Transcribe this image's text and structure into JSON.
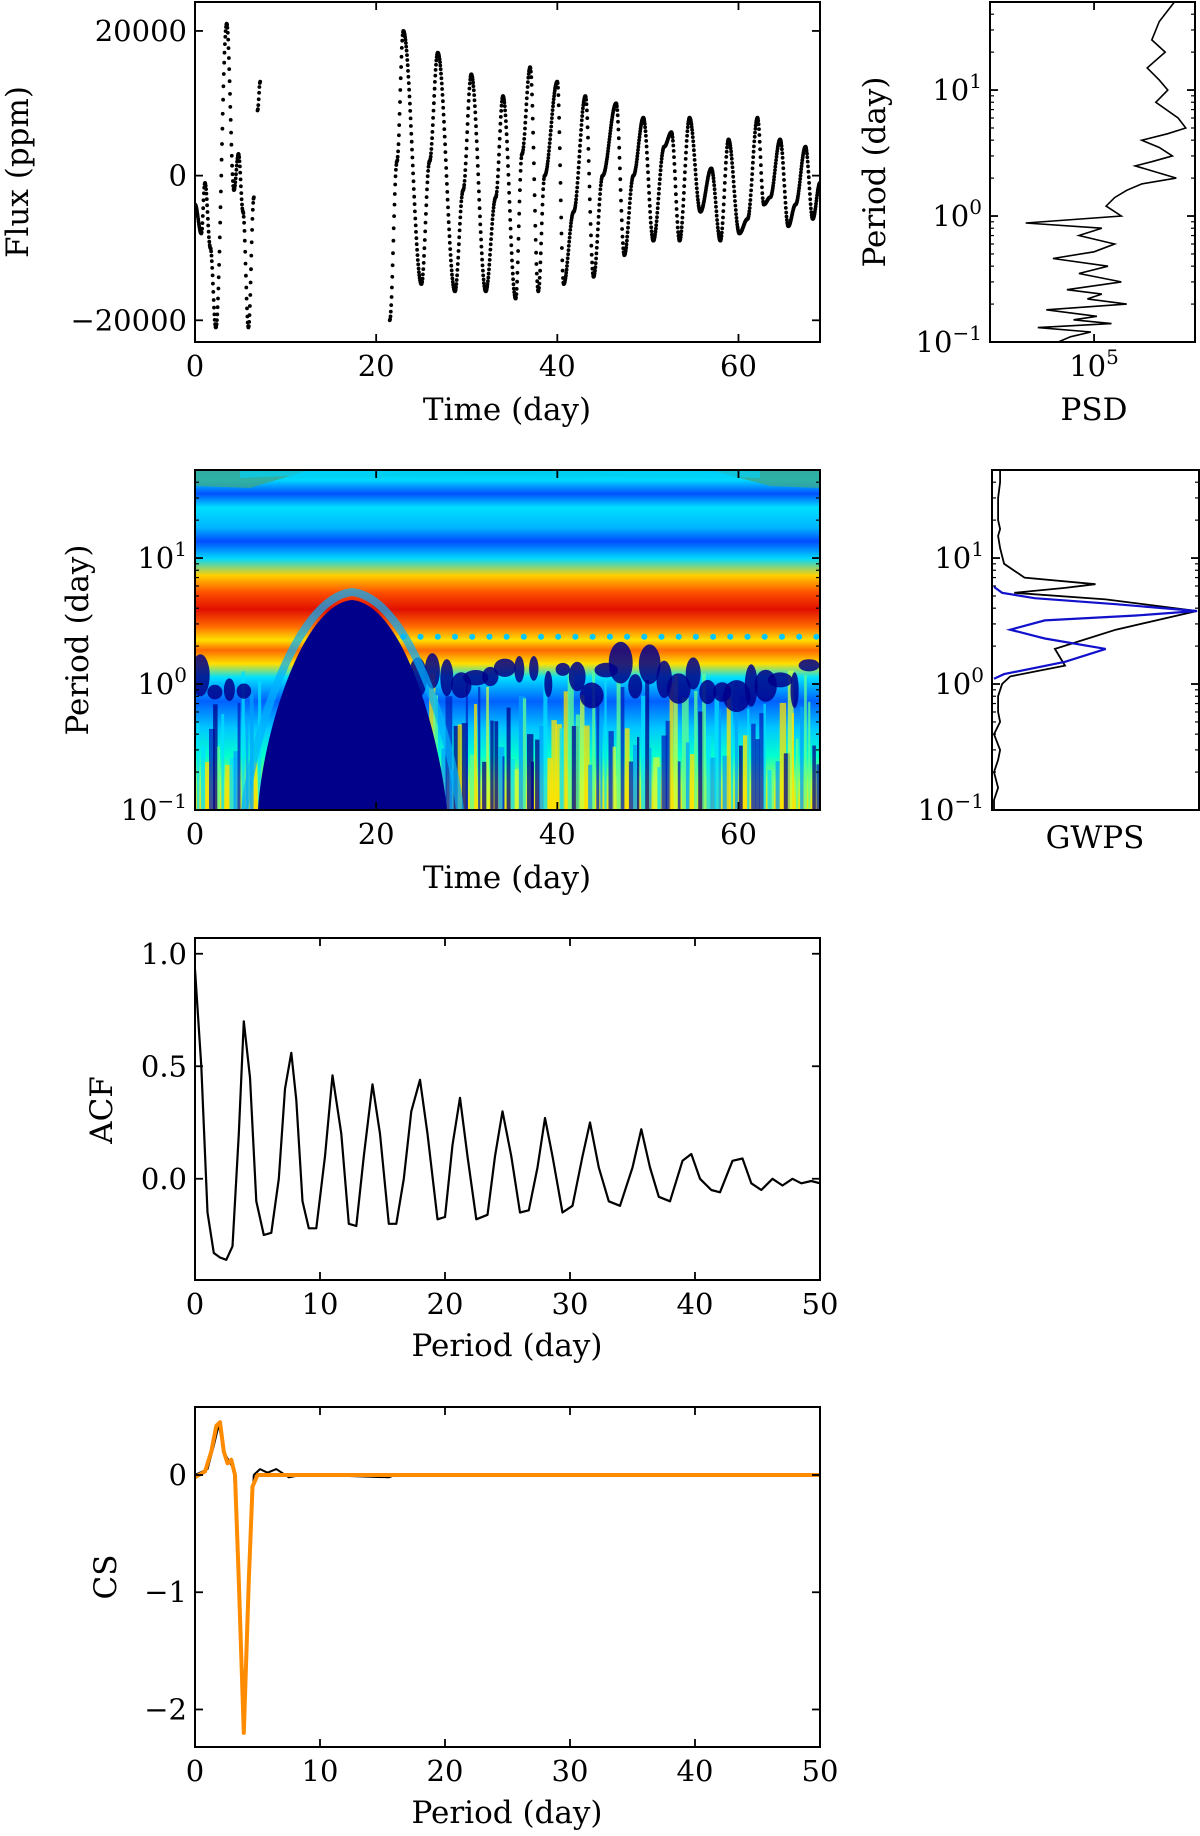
{
  "chart_data": [
    {
      "id": "lightcurve",
      "type": "scatter",
      "title": "",
      "xlabel": "Time (day)",
      "ylabel": "Flux (ppm)",
      "xlim": [
        0,
        69
      ],
      "ylim": [
        -23000,
        24000
      ],
      "xticks": [
        0,
        20,
        40,
        60
      ],
      "xtick_labels": [
        "0",
        "20",
        "40",
        "60"
      ],
      "yticks": [
        -20000,
        0,
        20000
      ],
      "ytick_labels": [
        "−20000",
        "0",
        "20000"
      ],
      "point_color": "#000000",
      "segments": [
        {
          "t": [
            0,
            0.7,
            1.1,
            1.7,
            2.3,
            3.5,
            4.3,
            4.8,
            5.3,
            5.9,
            6.5
          ],
          "y": [
            -4000,
            -8000,
            -1000,
            -10000,
            -21000,
            21000,
            -2000,
            3000,
            -5000,
            -21000,
            -3000
          ]
        },
        {
          "t": [
            6.9,
            7.2
          ],
          "y": [
            9000,
            13000
          ]
        },
        {
          "t": [
            21.5,
            22.3,
            23.0,
            25.0,
            25.9,
            26.8,
            28.7,
            29.6,
            30.5,
            32.1,
            33.2,
            34.0,
            35.4,
            36.1,
            37.0,
            37.9,
            38.6,
            40.0,
            40.7,
            41.8,
            43.1,
            44.0,
            45.0,
            46.5,
            47.4,
            48.4,
            49.5,
            50.6,
            51.8,
            52.6,
            53.5,
            54.6,
            55.8,
            57.0,
            58.0,
            58.9,
            60.1,
            61.0,
            62.1,
            62.8,
            63.5,
            64.6,
            65.5,
            66.3,
            67.4,
            68.2,
            69.0
          ],
          "y": [
            -20000,
            2000,
            20000,
            -15000,
            2000,
            17000,
            -16000,
            -2000,
            14000,
            -16000,
            -3000,
            11000,
            -17000,
            3000,
            15000,
            -16000,
            0,
            13000,
            -15000,
            -5000,
            11000,
            -14000,
            0,
            10000,
            -11000,
            0,
            8000,
            -9000,
            4000,
            6000,
            -9000,
            8000,
            -5000,
            1000,
            -9000,
            5000,
            -8000,
            -6000,
            8000,
            -4000,
            -3000,
            5000,
            -7000,
            -4000,
            4000,
            -6000,
            -1000
          ]
        }
      ]
    },
    {
      "id": "psd",
      "type": "line",
      "title": "",
      "xlabel": "PSD",
      "ylabel": "Period (day)",
      "xscale": "log",
      "yscale": "log",
      "xlim": [
        3000,
        3000000
      ],
      "ylim": [
        0.1,
        50
      ],
      "xticks": [
        100000
      ],
      "xtick_labels": [
        "10",
        "5"
      ],
      "yticks": [
        0.1,
        1,
        10
      ],
      "ytick_labels": [
        [
          "10",
          "−1"
        ],
        [
          "10",
          "0"
        ],
        [
          "10",
          "1"
        ]
      ],
      "line_color": "#000000",
      "x": [
        1500000,
        900000,
        700000,
        1100000,
        600000,
        900000,
        1200000,
        800000,
        1700000,
        2200000,
        1200000,
        500000,
        900000,
        1400000,
        700000,
        400000,
        1600000,
        500000,
        300000,
        200000,
        150000,
        250000,
        10000,
        130000,
        60000,
        200000,
        100000,
        25000,
        160000,
        60000,
        250000,
        40000,
        130000,
        80000,
        300000,
        20000,
        110000,
        50000,
        180000,
        15000,
        90000,
        45000,
        30000
      ],
      "y": [
        50,
        35,
        25,
        20,
        15,
        12,
        10,
        8,
        6,
        5,
        4.5,
        4,
        3.5,
        3,
        2.7,
        2.5,
        2,
        1.8,
        1.6,
        1.4,
        1.2,
        1.0,
        0.88,
        0.8,
        0.7,
        0.6,
        0.52,
        0.46,
        0.4,
        0.35,
        0.3,
        0.26,
        0.24,
        0.22,
        0.2,
        0.18,
        0.16,
        0.15,
        0.14,
        0.13,
        0.12,
        0.11,
        0.1
      ]
    },
    {
      "id": "wavelet",
      "type": "heatmap",
      "title": "",
      "xlabel": "Time (day)",
      "ylabel": "Period (day)",
      "yscale": "log",
      "xlim": [
        0,
        69
      ],
      "ylim": [
        0.1,
        50
      ],
      "xticks": [
        0,
        20,
        40,
        60
      ],
      "xtick_labels": [
        "0",
        "20",
        "40",
        "60"
      ],
      "yticks": [
        0.1,
        1,
        10
      ],
      "ytick_labels": [
        [
          "10",
          "−1"
        ],
        [
          "10",
          "0"
        ],
        [
          "10",
          "1"
        ]
      ],
      "colormap": "jet",
      "gap_days": [
        7,
        21.5
      ],
      "dominant_period_day": 3.8,
      "secondary_period_day": 1.9
    },
    {
      "id": "gwps",
      "type": "line",
      "title": "",
      "xlabel": "GWPS",
      "ylabel": "",
      "yscale": "log",
      "ylim": [
        0.1,
        50
      ],
      "yticks": [
        0.1,
        1,
        10
      ],
      "ytick_labels": [
        [
          "10",
          "−1"
        ],
        [
          "10",
          "0"
        ],
        [
          "10",
          "1"
        ]
      ],
      "series": [
        {
          "color": "#000000",
          "x": [
            0.0,
            0.0,
            0.02,
            0.0,
            0.02,
            0.03,
            0.0,
            0.03,
            0.02,
            0.02,
            0.04,
            0.08,
            0.35,
            0.3,
            0.6,
            1.0,
            0.55,
            0.1,
            0.35,
            0.5,
            0.15,
            0.05,
            0.03,
            0.02,
            0.03,
            0.02,
            0.02,
            0.02,
            0.03,
            0.03
          ],
          "y": [
            0.1,
            0.12,
            0.15,
            0.2,
            0.25,
            0.3,
            0.4,
            0.5,
            0.6,
            0.8,
            1.0,
            1.15,
            1.4,
            1.9,
            2.7,
            3.8,
            4.7,
            5.3,
            5.8,
            6.2,
            7.0,
            9.0,
            12.0,
            15.0,
            17.0,
            20.0,
            25.0,
            30.0,
            40.0,
            50.0
          ]
        },
        {
          "color": "#1111cc",
          "x": [
            0.0,
            0.05,
            0.35,
            0.55,
            0.25,
            0.08,
            0.25,
            0.7,
            1.0,
            0.6,
            0.2,
            0.04,
            0.0
          ],
          "y": [
            1.1,
            1.2,
            1.5,
            1.9,
            2.3,
            2.7,
            3.2,
            3.5,
            3.8,
            4.3,
            4.8,
            5.3,
            5.9
          ]
        }
      ]
    },
    {
      "id": "acf",
      "type": "line",
      "title": "",
      "xlabel": "Period (day)",
      "ylabel": "ACF",
      "xlim": [
        0,
        50
      ],
      "ylim": [
        -0.45,
        1.07
      ],
      "xticks": [
        0,
        10,
        20,
        30,
        40,
        50
      ],
      "xtick_labels": [
        "0",
        "10",
        "20",
        "30",
        "40",
        "50"
      ],
      "yticks": [
        0,
        0.5,
        1
      ],
      "ytick_labels": [
        "0.0",
        "0.5",
        "1.0"
      ],
      "line_color": "#000000",
      "x": [
        0,
        0.5,
        1.0,
        1.5,
        2.0,
        2.5,
        3.0,
        3.5,
        3.9,
        4.4,
        4.9,
        5.5,
        6.1,
        6.7,
        7.2,
        7.7,
        8.1,
        8.6,
        9.1,
        9.7,
        10.4,
        11.0,
        11.7,
        12.3,
        12.9,
        13.5,
        14.2,
        14.8,
        15.5,
        16.1,
        16.7,
        17.3,
        18.0,
        18.6,
        19.4,
        20.0,
        20.6,
        21.2,
        21.8,
        22.5,
        23.4,
        24.0,
        24.6,
        25.3,
        26.0,
        26.7,
        27.4,
        28.0,
        28.6,
        29.4,
        30.2,
        31.0,
        31.6,
        32.3,
        33.1,
        34.0,
        35.0,
        35.7,
        36.4,
        37.1,
        38.0,
        39.0,
        39.7,
        40.4,
        41.3,
        42.0,
        43.0,
        43.8,
        44.5,
        45.3,
        46.2,
        47.0,
        47.8,
        48.5,
        49.3,
        50.0
      ],
      "y": [
        0.93,
        0.5,
        -0.15,
        -0.33,
        -0.35,
        -0.36,
        -0.3,
        0.2,
        0.7,
        0.45,
        -0.1,
        -0.25,
        -0.24,
        0.0,
        0.4,
        0.56,
        0.35,
        -0.1,
        -0.22,
        -0.22,
        0.1,
        0.46,
        0.2,
        -0.2,
        -0.21,
        0.1,
        0.42,
        0.2,
        -0.2,
        -0.2,
        0.0,
        0.3,
        0.44,
        0.2,
        -0.18,
        -0.17,
        0.15,
        0.36,
        0.1,
        -0.18,
        -0.16,
        0.1,
        0.3,
        0.1,
        -0.15,
        -0.14,
        0.05,
        0.27,
        0.1,
        -0.15,
        -0.12,
        0.1,
        0.25,
        0.05,
        -0.1,
        -0.12,
        0.05,
        0.22,
        0.05,
        -0.08,
        -0.1,
        0.08,
        0.11,
        0.0,
        -0.05,
        -0.06,
        0.08,
        0.09,
        -0.02,
        -0.05,
        0.0,
        -0.03,
        0.0,
        -0.02,
        -0.01,
        -0.02
      ]
    },
    {
      "id": "cs",
      "type": "line",
      "title": "",
      "xlabel": "Period (day)",
      "ylabel": "CS",
      "xlim": [
        0,
        50
      ],
      "ylim": [
        -2.32,
        0.58
      ],
      "xticks": [
        0,
        10,
        20,
        30,
        40,
        50
      ],
      "xtick_labels": [
        "0",
        "10",
        "20",
        "30",
        "40",
        "50"
      ],
      "yticks": [
        -2,
        -1,
        0
      ],
      "ytick_labels": [
        "−2",
        "−1",
        "0"
      ],
      "series": [
        {
          "color": "#000000",
          "x": [
            0,
            1.0,
            1.5,
            1.9,
            2.3,
            2.7,
            3.1,
            3.5,
            3.9,
            4.3,
            4.7,
            5.2,
            5.8,
            6.5,
            7.5,
            8.5,
            10.0,
            15.5,
            16.0,
            50.0
          ],
          "y": [
            0.0,
            0.05,
            0.25,
            0.43,
            0.2,
            0.12,
            0.05,
            -0.8,
            -2.2,
            -0.8,
            0.0,
            0.05,
            0.02,
            0.05,
            -0.02,
            0.0,
            0.0,
            -0.02,
            0.0,
            0.0
          ]
        },
        {
          "color": "#ff8c00",
          "x": [
            0,
            0.8,
            1.3,
            1.7,
            2.0,
            2.3,
            2.6,
            2.9,
            3.2,
            3.5,
            3.9,
            4.3,
            4.6,
            5.0,
            5.5,
            6.5,
            8.0,
            50.0
          ],
          "y": [
            -0.02,
            0.03,
            0.2,
            0.42,
            0.45,
            0.2,
            0.1,
            0.13,
            0.0,
            -0.9,
            -2.2,
            -0.9,
            -0.1,
            0.0,
            0.0,
            0.0,
            0.0,
            0.0
          ]
        }
      ]
    }
  ]
}
